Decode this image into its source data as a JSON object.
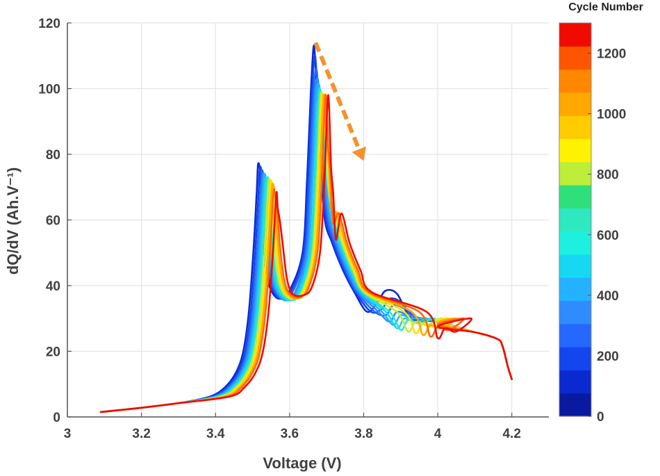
{
  "chart_data": {
    "type": "line",
    "xlabel": "Voltage (V)",
    "ylabel": "dQ/dV (Ah.V⁻¹)",
    "xlim": [
      3.0,
      4.3
    ],
    "ylim": [
      0,
      120
    ],
    "xticks": [
      "3",
      "3.2",
      "3.4",
      "3.6",
      "3.8",
      "4",
      "4.2"
    ],
    "yticks": [
      "0",
      "20",
      "40",
      "60",
      "80",
      "100",
      "120"
    ],
    "grid": true,
    "colorbar": {
      "title": "Cycle Number",
      "range": [
        0,
        1300
      ],
      "ticks": [
        "0",
        "200",
        "400",
        "600",
        "800",
        "1000",
        "1200"
      ],
      "colormap": "jet"
    },
    "annotation": {
      "type": "dashed-arrow",
      "color": "#f5922e",
      "from": [
        3.67,
        114
      ],
      "to": [
        3.8,
        78
      ]
    },
    "series": [
      {
        "cycle": 0,
        "color": "#0a2ad0",
        "peak1": [
          3.515,
          77
        ],
        "valley1": [
          3.575,
          36
        ],
        "peak2": [
          3.665,
          113
        ],
        "hump": [
          3.86,
          38.5
        ]
      },
      {
        "cycle": 100,
        "color": "#1446ee",
        "peak1": [
          3.52,
          76
        ],
        "valley1": [
          3.58,
          36
        ],
        "peak2": [
          3.668,
          110
        ],
        "hump": [
          3.87,
          36
        ]
      },
      {
        "cycle": 200,
        "color": "#2468ff",
        "peak1": [
          3.525,
          75
        ],
        "valley1": [
          3.585,
          36
        ],
        "peak2": [
          3.672,
          106
        ],
        "hump": [
          3.88,
          34
        ]
      },
      {
        "cycle": 300,
        "color": "#2f8cff",
        "peak1": [
          3.528,
          74
        ],
        "valley1": [
          3.59,
          35.5
        ],
        "peak2": [
          3.676,
          103
        ],
        "hump": [
          3.89,
          32
        ]
      },
      {
        "cycle": 400,
        "color": "#24b2ff",
        "peak1": [
          3.532,
          74
        ],
        "valley1": [
          3.595,
          35.5
        ],
        "peak2": [
          3.68,
          101
        ],
        "hump": [
          3.9,
          31
        ]
      },
      {
        "cycle": 500,
        "color": "#16d8f2",
        "peak1": [
          3.536,
          73
        ],
        "valley1": [
          3.6,
          35.5
        ],
        "peak2": [
          3.685,
          98
        ],
        "hump": [
          3.91,
          30
        ]
      },
      {
        "cycle": 600,
        "color": "#2ee8c2",
        "peak1": [
          3.54,
          73
        ],
        "valley1": [
          3.605,
          35.5
        ],
        "peak2": [
          3.688,
          96
        ],
        "hump": [
          3.92,
          29.5
        ]
      },
      {
        "cycle": 800,
        "color": "#bcee3a",
        "peak1": [
          3.545,
          72.5
        ],
        "valley1": [
          3.61,
          36
        ],
        "peak2": [
          3.692,
          92
        ],
        "hump": [
          3.94,
          29
        ]
      },
      {
        "cycle": 900,
        "color": "#ffe200",
        "peak1": [
          3.55,
          72
        ],
        "valley1": [
          3.615,
          36
        ],
        "peak2": [
          3.695,
          89
        ],
        "hump": [
          3.96,
          28.5
        ]
      },
      {
        "cycle": 1000,
        "color": "#ffa800",
        "peak1": [
          3.555,
          71
        ],
        "valley1": [
          3.62,
          36
        ],
        "peak2": [
          3.7,
          85
        ],
        "hump": [
          3.98,
          28
        ]
      },
      {
        "cycle": 1100,
        "color": "#ff6a00",
        "peak1": [
          3.56,
          68
        ],
        "valley1": [
          3.625,
          36.5
        ],
        "peak2": [
          3.705,
          81
        ],
        "hump": [
          4.0,
          27.5
        ]
      },
      {
        "cycle": 1250,
        "color": "#f00a00",
        "peak1": [
          3.568,
          63.5
        ],
        "valley1": [
          3.635,
          37
        ],
        "peak2": [
          3.712,
          76
        ],
        "hump": [
          4.02,
          27
        ]
      }
    ]
  }
}
